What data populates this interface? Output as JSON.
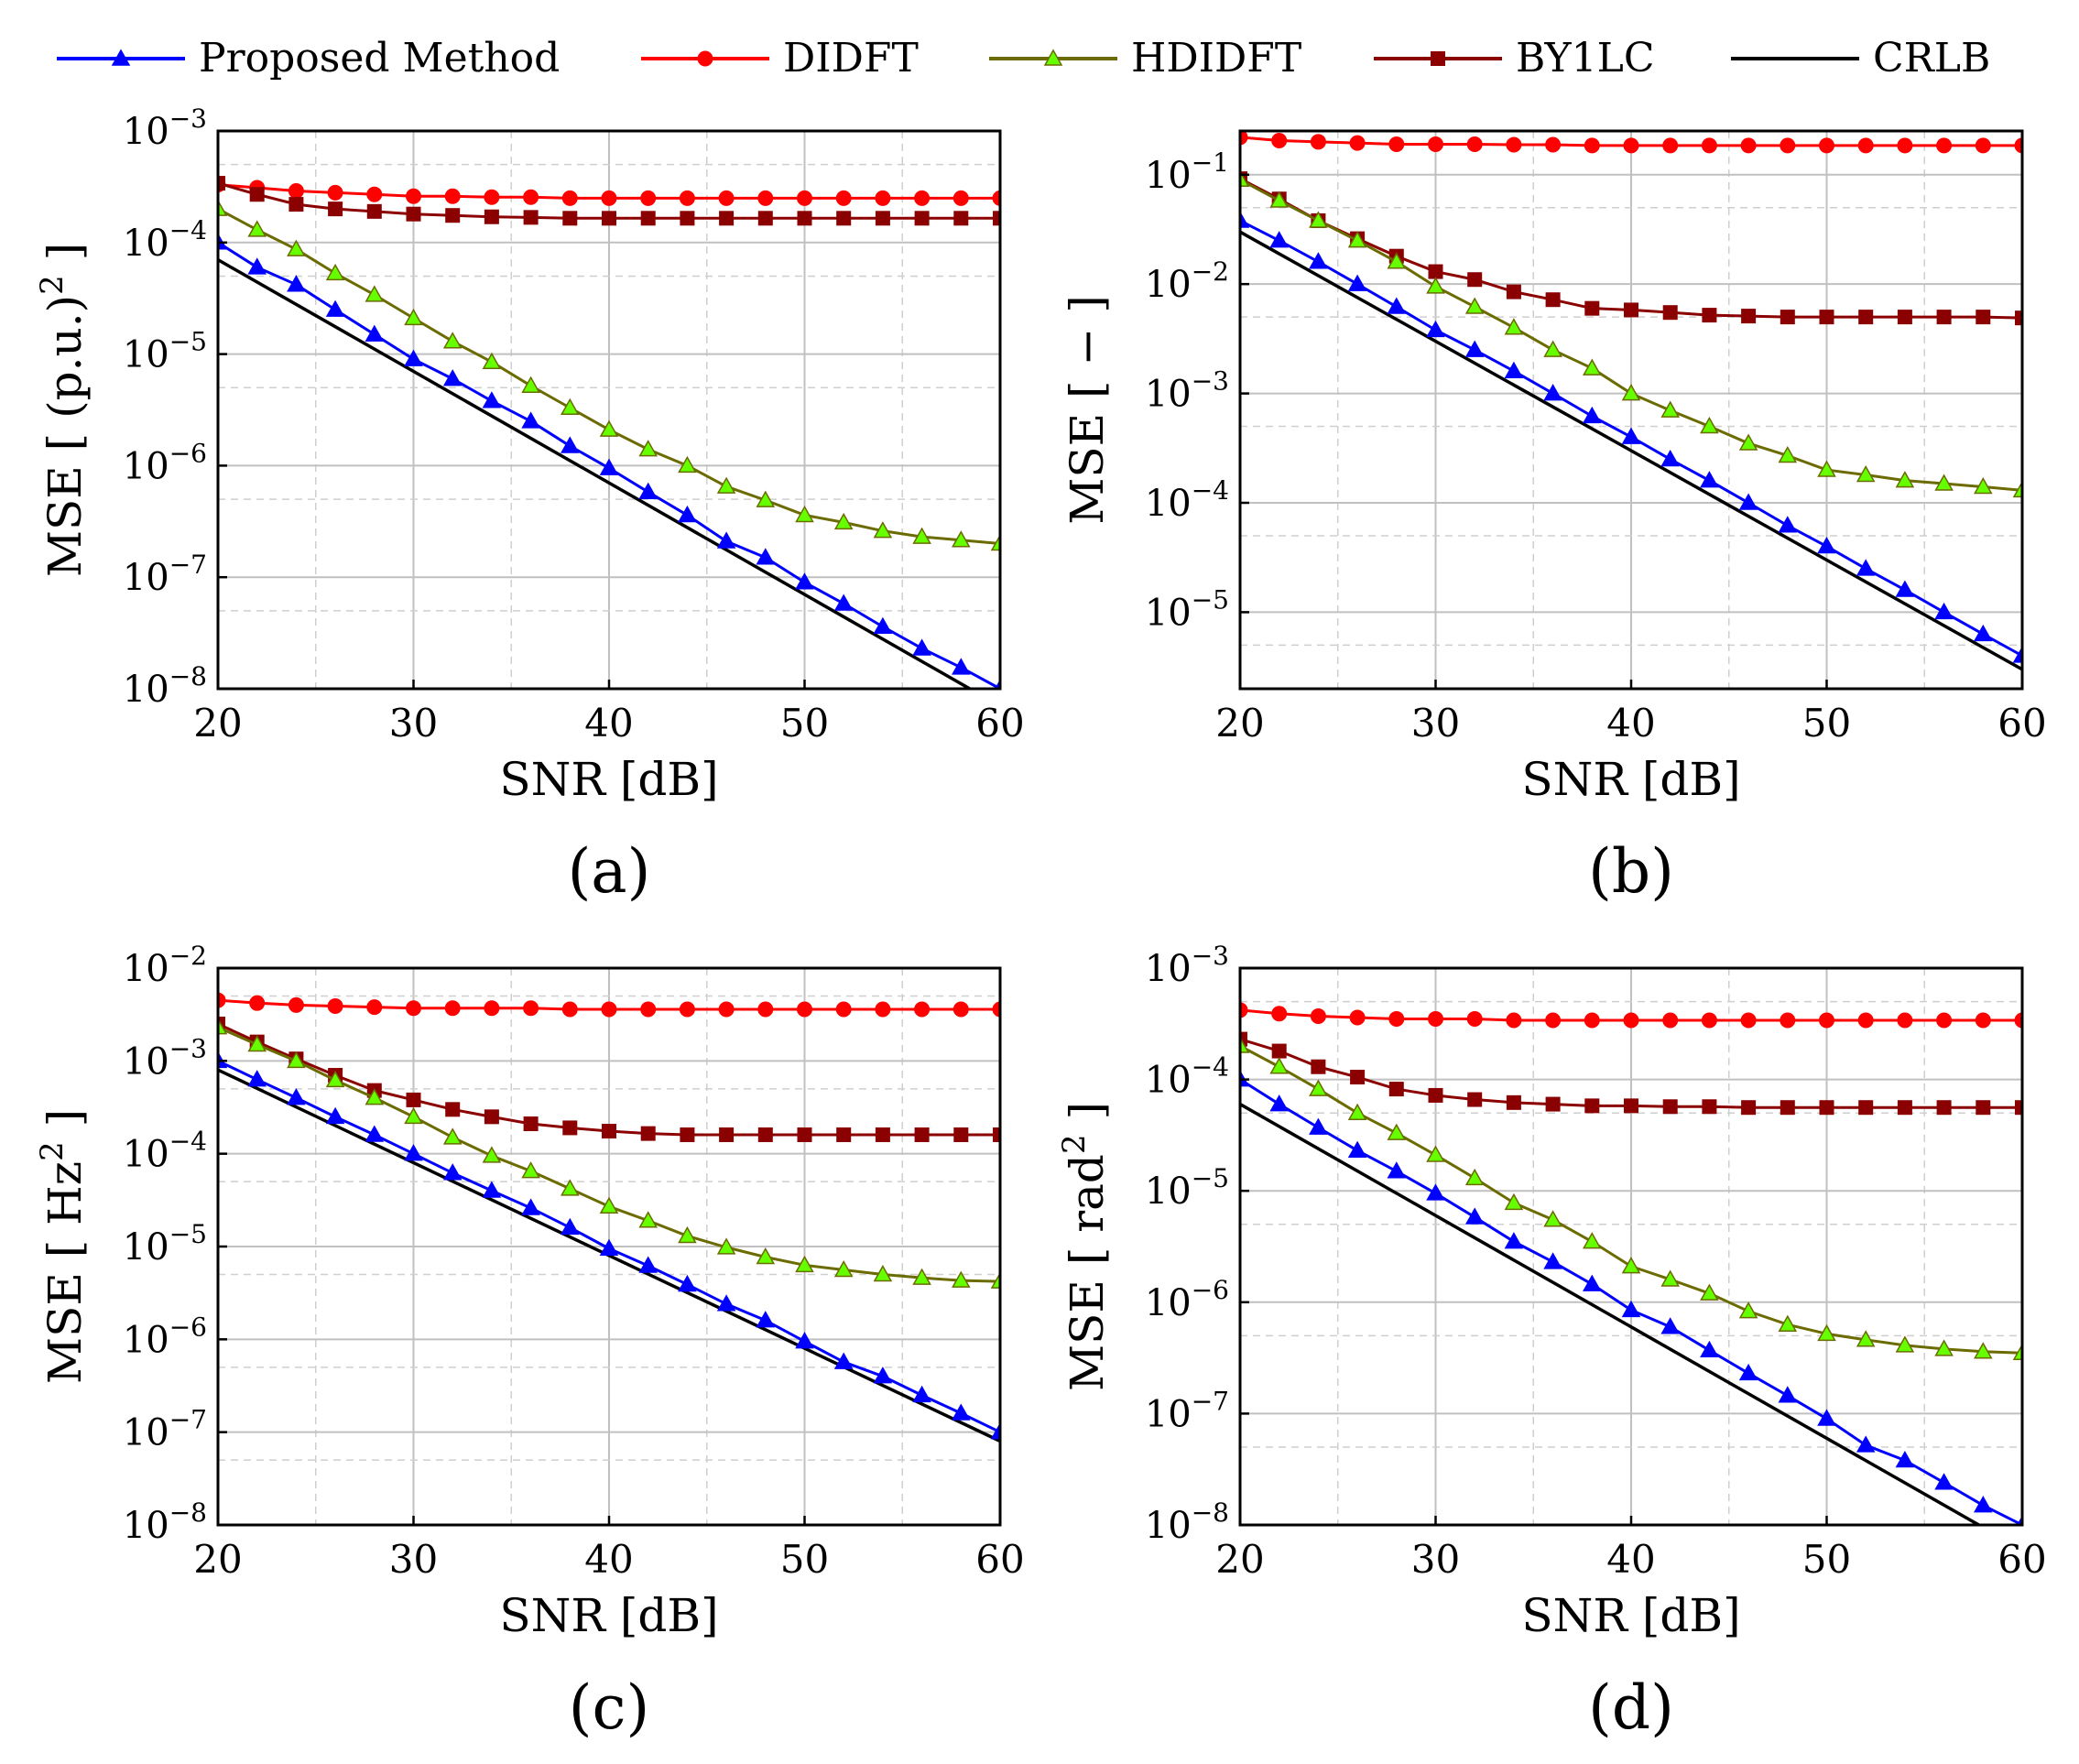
{
  "legend": [
    {
      "label": "Proposed Method",
      "color": "#0000ff",
      "marker": "triangle"
    },
    {
      "label": "DIDFT",
      "color": "#ff0000",
      "marker": "circle"
    },
    {
      "label": "HDIDFT",
      "color": "#6b6b00",
      "marker": "triangle-green"
    },
    {
      "label": "BY1LC",
      "color": "#8b0000",
      "marker": "square"
    },
    {
      "label": "CRLB",
      "color": "#000000",
      "marker": "none"
    }
  ],
  "colors": {
    "proposed": "#0000ff",
    "didft": "#ff0000",
    "hdidft_line": "#6b6b00",
    "hdidft_marker": "#66ff00",
    "by1lc": "#8b0000",
    "crlb": "#000000",
    "grid": "#bfbfbf"
  },
  "chart_data": [
    {
      "type": "line",
      "panel_label": "(a)",
      "xlabel": "SNR [dB]",
      "ylabel_main": "MSE [ (p.u.)",
      "ylabel_sup": "2",
      "ylabel_end": " ]",
      "ylog": true,
      "xlim": [
        20,
        60
      ],
      "ylim_exp": [
        -8,
        -3
      ],
      "xticks": [
        20,
        30,
        40,
        50,
        60
      ],
      "yticks_exp": [
        -8,
        -7,
        -6,
        -5,
        -4,
        -3
      ],
      "grid": true,
      "x": [
        20,
        22,
        24,
        26,
        28,
        30,
        32,
        34,
        36,
        38,
        40,
        42,
        44,
        46,
        48,
        50,
        52,
        54,
        56,
        58,
        60
      ],
      "series": [
        {
          "name": "Proposed Method",
          "key": "proposed",
          "values": [
            0.0001,
            6e-05,
            4.2e-05,
            2.5e-05,
            1.5e-05,
            9e-06,
            6e-06,
            3.8e-06,
            2.5e-06,
            1.5e-06,
            9.5e-07,
            5.8e-07,
            3.6e-07,
            2.1e-07,
            1.5e-07,
            9e-08,
            5.8e-08,
            3.6e-08,
            2.3e-08,
            1.55e-08,
            1e-08
          ]
        },
        {
          "name": "DIDFT",
          "key": "didft",
          "values": [
            0.00033,
            0.00031,
            0.00029,
            0.00028,
            0.00027,
            0.00026,
            0.00026,
            0.000255,
            0.000255,
            0.00025,
            0.00025,
            0.00025,
            0.00025,
            0.00025,
            0.00025,
            0.00025,
            0.00025,
            0.00025,
            0.00025,
            0.00025,
            0.00025
          ]
        },
        {
          "name": "HDIDFT",
          "key": "hdidft",
          "values": [
            0.0002,
            0.00013,
            8.7e-05,
            5.3e-05,
            3.4e-05,
            2.1e-05,
            1.3e-05,
            8.5e-06,
            5.2e-06,
            3.3e-06,
            2.1e-06,
            1.4e-06,
            1e-06,
            6.5e-07,
            4.9e-07,
            3.6e-07,
            3.1e-07,
            2.6e-07,
            2.3e-07,
            2.15e-07,
            2e-07
          ]
        },
        {
          "name": "BY1LC",
          "key": "by1lc",
          "values": [
            0.00034,
            0.00027,
            0.00022,
            0.0002,
            0.00019,
            0.00018,
            0.000175,
            0.00017,
            0.000168,
            0.000165,
            0.000165,
            0.000165,
            0.000165,
            0.000165,
            0.000165,
            0.000165,
            0.000165,
            0.000165,
            0.000165,
            0.000165,
            0.000165
          ]
        },
        {
          "name": "CRLB",
          "key": "crlb",
          "endpoints": [
            [
              20,
              7e-05
            ],
            [
              60,
              7e-09
            ]
          ]
        }
      ]
    },
    {
      "type": "line",
      "panel_label": "(b)",
      "xlabel": "SNR [dB]",
      "ylabel_main": "MSE [ − ]",
      "ylabel_sup": "",
      "ylabel_end": "",
      "ylog": true,
      "xlim": [
        20,
        60
      ],
      "ylim_exp": [
        -5.7,
        -0.6
      ],
      "xticks": [
        20,
        30,
        40,
        50,
        60
      ],
      "yticks_exp": [
        -5,
        -4,
        -3,
        -2,
        -1
      ],
      "grid": true,
      "x": [
        20,
        22,
        24,
        26,
        28,
        30,
        32,
        34,
        36,
        38,
        40,
        42,
        44,
        46,
        48,
        50,
        52,
        54,
        56,
        58,
        60
      ],
      "series": [
        {
          "name": "Proposed Method",
          "key": "proposed",
          "values": [
            0.038,
            0.025,
            0.016,
            0.01,
            0.0062,
            0.0038,
            0.0025,
            0.0016,
            0.001,
            0.00062,
            0.0004,
            0.00025,
            0.00016,
            0.0001,
            6.2e-05,
            4e-05,
            2.5e-05,
            1.6e-05,
            1e-05,
            6.3e-06,
            4e-06
          ]
        },
        {
          "name": "DIDFT",
          "key": "didft",
          "values": [
            0.22,
            0.205,
            0.2,
            0.195,
            0.19,
            0.19,
            0.19,
            0.188,
            0.188,
            0.185,
            0.185,
            0.185,
            0.185,
            0.185,
            0.185,
            0.185,
            0.185,
            0.185,
            0.185,
            0.185,
            0.185
          ]
        },
        {
          "name": "HDIDFT",
          "key": "hdidft",
          "values": [
            0.09,
            0.058,
            0.038,
            0.025,
            0.016,
            0.0095,
            0.0062,
            0.004,
            0.0025,
            0.0017,
            0.001,
            0.0007,
            0.0005,
            0.00035,
            0.00027,
            0.0002,
            0.00018,
            0.00016,
            0.00015,
            0.00014,
            0.00013
          ]
        },
        {
          "name": "BY1LC",
          "key": "by1lc",
          "values": [
            0.092,
            0.06,
            0.038,
            0.026,
            0.018,
            0.013,
            0.011,
            0.0085,
            0.0072,
            0.006,
            0.0058,
            0.0055,
            0.0052,
            0.0051,
            0.005,
            0.005,
            0.005,
            0.005,
            0.005,
            0.005,
            0.0049
          ]
        },
        {
          "name": "CRLB",
          "key": "crlb",
          "endpoints": [
            [
              20,
              0.03
            ],
            [
              60,
              3e-06
            ]
          ]
        }
      ]
    },
    {
      "type": "line",
      "panel_label": "(c)",
      "xlabel": "SNR [dB]",
      "ylabel_main": "MSE [ Hz",
      "ylabel_sup": "2",
      "ylabel_end": " ]",
      "ylog": true,
      "xlim": [
        20,
        60
      ],
      "ylim_exp": [
        -8,
        -2
      ],
      "xticks": [
        20,
        30,
        40,
        50,
        60
      ],
      "yticks_exp": [
        -8,
        -7,
        -6,
        -5,
        -4,
        -3,
        -2
      ],
      "grid": true,
      "x": [
        20,
        22,
        24,
        26,
        28,
        30,
        32,
        34,
        36,
        38,
        40,
        42,
        44,
        46,
        48,
        50,
        52,
        54,
        56,
        58,
        60
      ],
      "series": [
        {
          "name": "Proposed Method",
          "key": "proposed",
          "values": [
            0.001,
            0.00063,
            0.0004,
            0.00025,
            0.00016,
            0.0001,
            6.2e-05,
            4e-05,
            2.6e-05,
            1.6e-05,
            9.5e-06,
            6.2e-06,
            3.9e-06,
            2.4e-06,
            1.6e-06,
            9.5e-07,
            5.7e-07,
            4e-07,
            2.5e-07,
            1.6e-07,
            1e-07
          ]
        },
        {
          "name": "DIDFT",
          "key": "didft",
          "values": [
            0.0045,
            0.0042,
            0.004,
            0.0039,
            0.0038,
            0.0037,
            0.0037,
            0.0037,
            0.0037,
            0.0036,
            0.0036,
            0.0036,
            0.0036,
            0.0036,
            0.0036,
            0.0036,
            0.0036,
            0.0036,
            0.0036,
            0.0036,
            0.0036
          ]
        },
        {
          "name": "HDIDFT",
          "key": "hdidft",
          "values": [
            0.0023,
            0.0015,
            0.001,
            0.00062,
            0.0004,
            0.00025,
            0.00015,
            9.5e-05,
            6.5e-05,
            4.2e-05,
            2.7e-05,
            1.9e-05,
            1.3e-05,
            9.8e-06,
            7.7e-06,
            6.3e-06,
            5.6e-06,
            5e-06,
            4.6e-06,
            4.3e-06,
            4.2e-06
          ]
        },
        {
          "name": "BY1LC",
          "key": "by1lc",
          "values": [
            0.0025,
            0.0016,
            0.00105,
            0.0007,
            0.00048,
            0.00038,
            0.0003,
            0.00025,
            0.00021,
            0.00019,
            0.000175,
            0.000165,
            0.00016,
            0.00016,
            0.00016,
            0.00016,
            0.00016,
            0.00016,
            0.00016,
            0.00016,
            0.00016
          ]
        },
        {
          "name": "CRLB",
          "key": "crlb",
          "endpoints": [
            [
              20,
              0.0008
            ],
            [
              60,
              8e-08
            ]
          ]
        }
      ]
    },
    {
      "type": "line",
      "panel_label": "(d)",
      "xlabel": "SNR [dB]",
      "ylabel_main": "MSE [ rad",
      "ylabel_sup": "2",
      "ylabel_end": " ]",
      "ylog": true,
      "xlim": [
        20,
        60
      ],
      "ylim_exp": [
        -8,
        -3
      ],
      "xticks": [
        20,
        30,
        40,
        50,
        60
      ],
      "yticks_exp": [
        -8,
        -7,
        -6,
        -5,
        -4,
        -3
      ],
      "grid": true,
      "x": [
        20,
        22,
        24,
        26,
        28,
        30,
        32,
        34,
        36,
        38,
        40,
        42,
        44,
        46,
        48,
        50,
        52,
        54,
        56,
        58,
        60
      ],
      "series": [
        {
          "name": "Proposed Method",
          "key": "proposed",
          "values": [
            0.0001,
            6e-05,
            3.7e-05,
            2.3e-05,
            1.5e-05,
            9.5e-06,
            5.8e-06,
            3.5e-06,
            2.3e-06,
            1.45e-06,
            8.5e-07,
            6e-07,
            3.7e-07,
            2.3e-07,
            1.45e-07,
            9e-08,
            5.2e-08,
            3.8e-08,
            2.4e-08,
            1.5e-08,
            1e-08
          ]
        },
        {
          "name": "DIDFT",
          "key": "didft",
          "values": [
            0.00042,
            0.00039,
            0.00037,
            0.00036,
            0.00035,
            0.00035,
            0.00035,
            0.00034,
            0.00034,
            0.00034,
            0.00034,
            0.00034,
            0.00034,
            0.00034,
            0.00034,
            0.00034,
            0.00034,
            0.00034,
            0.00034,
            0.00034,
            0.00034
          ]
        },
        {
          "name": "HDIDFT",
          "key": "hdidft",
          "values": [
            0.0002,
            0.00013,
            8.2e-05,
            5e-05,
            3.3e-05,
            2.1e-05,
            1.3e-05,
            7.8e-06,
            5.5e-06,
            3.5e-06,
            2.1e-06,
            1.6e-06,
            1.2e-06,
            8.3e-07,
            6.3e-07,
            5.2e-07,
            4.6e-07,
            4.1e-07,
            3.8e-07,
            3.6e-07,
            3.5e-07
          ]
        },
        {
          "name": "BY1LC",
          "key": "by1lc",
          "values": [
            0.00023,
            0.00018,
            0.00013,
            0.000105,
            8.2e-05,
            7.2e-05,
            6.6e-05,
            6.2e-05,
            6e-05,
            5.8e-05,
            5.8e-05,
            5.7e-05,
            5.7e-05,
            5.6e-05,
            5.6e-05,
            5.6e-05,
            5.6e-05,
            5.6e-05,
            5.6e-05,
            5.6e-05,
            5.6e-05
          ]
        },
        {
          "name": "CRLB",
          "key": "crlb",
          "endpoints": [
            [
              20,
              6e-05
            ],
            [
              60,
              6e-09
            ]
          ]
        }
      ]
    }
  ]
}
